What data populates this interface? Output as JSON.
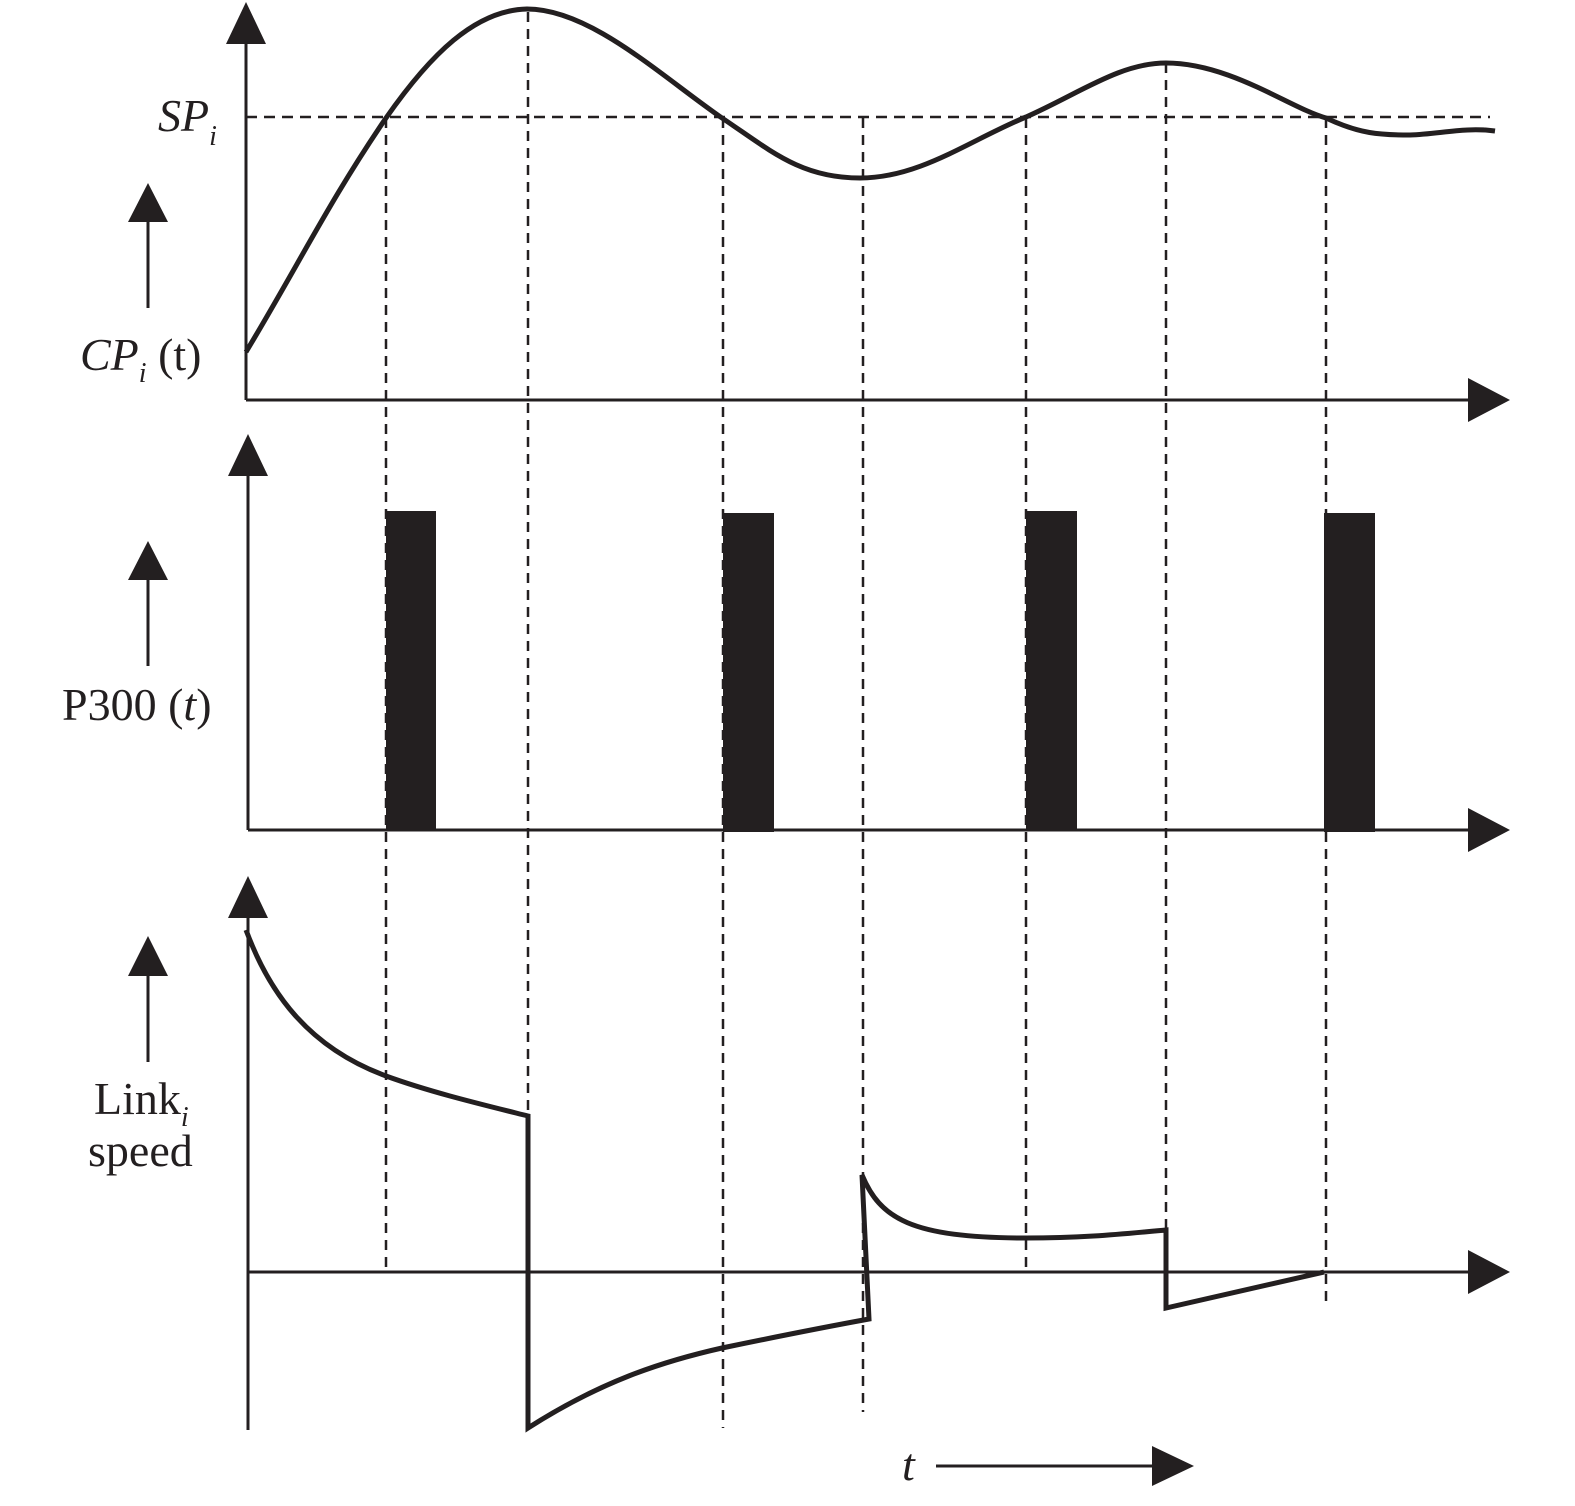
{
  "colors": {
    "ink": "#231f20",
    "background": "#ffffff"
  },
  "setpoint": {
    "label_main": "SP",
    "label_sub": "i"
  },
  "panel_cp": {
    "label_main": "CP",
    "label_sub": "i",
    "label_arg": " (t)"
  },
  "panel_p300": {
    "label": "P300 (",
    "label_arg": "t",
    "label_close": ")"
  },
  "panel_link": {
    "label_main": "Link",
    "label_sub": "i",
    "label_line2": "speed"
  },
  "time_axis": {
    "label": "t"
  }
}
